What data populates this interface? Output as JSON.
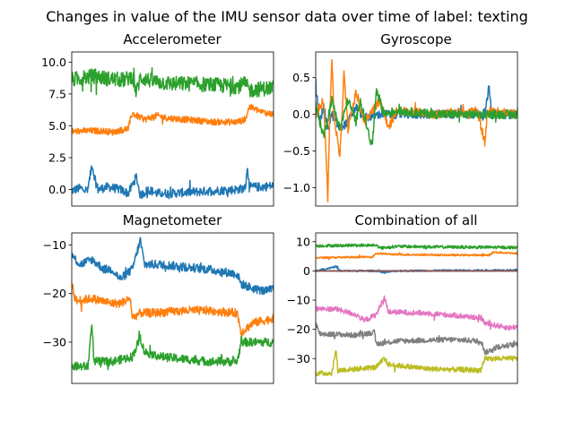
{
  "figure": {
    "title": "Changes in value of the IMU sensor data over time of label: texting"
  },
  "colors": [
    "#1f77b4",
    "#ff7f0e",
    "#2ca02c",
    "#d62728",
    "#9467bd",
    "#8c564b",
    "#e377c2",
    "#7f7f7f",
    "#bcbd22"
  ],
  "chart_data": [
    {
      "type": "line",
      "title": "Accelerometer",
      "xlabel": "",
      "ylabel": "",
      "xlim": [
        0,
        500
      ],
      "ylim": [
        -1.3,
        10.8
      ],
      "grid": false,
      "x_ticks_visible": false,
      "yticks": [
        0.0,
        2.5,
        5.0,
        7.5,
        10.0
      ],
      "ytick_labels": [
        "0.0",
        "2.5",
        "5.0",
        "7.5",
        "10.0"
      ],
      "series": [
        {
          "values": [
            [
              0,
              -0.1
            ],
            [
              20,
              0.1
            ],
            [
              40,
              -0.1
            ],
            [
              50,
              2.0
            ],
            [
              55,
              1.2
            ],
            [
              65,
              0.0
            ],
            [
              90,
              0.2
            ],
            [
              120,
              0.0
            ],
            [
              140,
              -0.3
            ],
            [
              160,
              1.0
            ],
            [
              170,
              -0.5
            ],
            [
              190,
              0.0
            ],
            [
              210,
              -0.3
            ],
            [
              250,
              -0.3
            ],
            [
              300,
              -0.2
            ],
            [
              350,
              -0.1
            ],
            [
              410,
              0.0
            ],
            [
              430,
              0.1
            ],
            [
              435,
              1.8
            ],
            [
              440,
              0.2
            ],
            [
              470,
              0.2
            ],
            [
              500,
              0.3
            ]
          ],
          "noise": 0.35
        },
        {
          "values": [
            [
              0,
              4.5
            ],
            [
              20,
              4.6
            ],
            [
              50,
              4.6
            ],
            [
              80,
              4.6
            ],
            [
              100,
              4.5
            ],
            [
              140,
              4.8
            ],
            [
              150,
              6.0
            ],
            [
              160,
              5.8
            ],
            [
              180,
              5.5
            ],
            [
              210,
              5.8
            ],
            [
              240,
              5.6
            ],
            [
              280,
              5.5
            ],
            [
              320,
              5.4
            ],
            [
              350,
              5.3
            ],
            [
              380,
              5.3
            ],
            [
              410,
              5.3
            ],
            [
              430,
              5.5
            ],
            [
              440,
              6.5
            ],
            [
              470,
              6.1
            ],
            [
              500,
              5.9
            ]
          ],
          "noise": 0.25
        },
        {
          "values": [
            [
              0,
              8.6
            ],
            [
              30,
              8.8
            ],
            [
              60,
              8.9
            ],
            [
              90,
              8.7
            ],
            [
              130,
              8.6
            ],
            [
              150,
              8.9
            ],
            [
              160,
              7.6
            ],
            [
              170,
              8.8
            ],
            [
              200,
              8.5
            ],
            [
              250,
              8.3
            ],
            [
              300,
              8.3
            ],
            [
              350,
              8.2
            ],
            [
              410,
              8.1
            ],
            [
              430,
              8.3
            ],
            [
              440,
              7.8
            ],
            [
              470,
              7.9
            ],
            [
              500,
              8.0
            ]
          ],
          "noise": 0.6
        }
      ]
    },
    {
      "type": "line",
      "title": "Gyroscope",
      "xlabel": "",
      "ylabel": "",
      "xlim": [
        0,
        500
      ],
      "ylim": [
        -1.25,
        0.85
      ],
      "grid": false,
      "x_ticks_visible": false,
      "yticks": [
        -1.0,
        -0.5,
        0.0,
        0.5
      ],
      "ytick_labels": [
        "−1.0",
        "−0.5",
        "0.0",
        "0.5"
      ],
      "series": [
        {
          "values": [
            [
              0,
              0.4
            ],
            [
              10,
              -0.1
            ],
            [
              20,
              0.1
            ],
            [
              30,
              -0.2
            ],
            [
              40,
              0.0
            ],
            [
              60,
              -0.2
            ],
            [
              80,
              -0.1
            ],
            [
              100,
              0.1
            ],
            [
              120,
              -0.05
            ],
            [
              160,
              0.0
            ],
            [
              200,
              0.0
            ],
            [
              300,
              0.0
            ],
            [
              420,
              0.0
            ],
            [
              430,
              0.4
            ],
            [
              435,
              0.0
            ],
            [
              500,
              0.0
            ]
          ],
          "noise": 0.06
        },
        {
          "values": [
            [
              0,
              0.0
            ],
            [
              20,
              0.2
            ],
            [
              30,
              -1.15
            ],
            [
              35,
              0.0
            ],
            [
              40,
              0.78
            ],
            [
              45,
              0.0
            ],
            [
              60,
              -0.6
            ],
            [
              70,
              0.55
            ],
            [
              80,
              -0.2
            ],
            [
              100,
              0.3
            ],
            [
              120,
              -0.1
            ],
            [
              160,
              0.2
            ],
            [
              180,
              -0.2
            ],
            [
              200,
              0.05
            ],
            [
              300,
              0.0
            ],
            [
              400,
              0.05
            ],
            [
              420,
              -0.4
            ],
            [
              425,
              0.05
            ],
            [
              500,
              0.0
            ]
          ],
          "noise": 0.06
        },
        {
          "values": [
            [
              0,
              0.1
            ],
            [
              20,
              -0.3
            ],
            [
              40,
              0.2
            ],
            [
              60,
              -0.2
            ],
            [
              80,
              0.2
            ],
            [
              100,
              -0.1
            ],
            [
              110,
              0.2
            ],
            [
              140,
              -0.45
            ],
            [
              150,
              0.35
            ],
            [
              170,
              0.0
            ],
            [
              200,
              0.05
            ],
            [
              300,
              0.0
            ],
            [
              400,
              0.0
            ],
            [
              500,
              0.0
            ]
          ],
          "noise": 0.06
        }
      ]
    },
    {
      "type": "line",
      "title": "Magnetometer",
      "xlabel": "",
      "ylabel": "",
      "xlim": [
        0,
        500
      ],
      "ylim": [
        -38.5,
        -7.5
      ],
      "grid": false,
      "x_ticks_visible": false,
      "yticks": [
        -30,
        -20,
        -10
      ],
      "ytick_labels": [
        "−30",
        "−20",
        "−10"
      ],
      "series": [
        {
          "values": [
            [
              0,
              -12
            ],
            [
              20,
              -14
            ],
            [
              50,
              -13
            ],
            [
              80,
              -15
            ],
            [
              100,
              -15
            ],
            [
              120,
              -17
            ],
            [
              150,
              -15
            ],
            [
              170,
              -9
            ],
            [
              180,
              -14
            ],
            [
              220,
              -14
            ],
            [
              280,
              -14.5
            ],
            [
              340,
              -15
            ],
            [
              410,
              -16
            ],
            [
              420,
              -18
            ],
            [
              450,
              -19
            ],
            [
              480,
              -19.5
            ],
            [
              500,
              -19
            ]
          ],
          "noise": 0.9
        },
        {
          "values": [
            [
              0,
              -18
            ],
            [
              10,
              -21.5
            ],
            [
              50,
              -21
            ],
            [
              100,
              -22
            ],
            [
              120,
              -22
            ],
            [
              145,
              -21
            ],
            [
              150,
              -25
            ],
            [
              170,
              -24
            ],
            [
              200,
              -24
            ],
            [
              280,
              -23.5
            ],
            [
              340,
              -23.5
            ],
            [
              410,
              -24
            ],
            [
              420,
              -28
            ],
            [
              450,
              -26
            ],
            [
              480,
              -25.5
            ],
            [
              500,
              -25
            ]
          ],
          "noise": 0.9
        },
        {
          "values": [
            [
              0,
              -35
            ],
            [
              40,
              -35
            ],
            [
              50,
              -26
            ],
            [
              55,
              -34
            ],
            [
              100,
              -34
            ],
            [
              150,
              -33
            ],
            [
              170,
              -29
            ],
            [
              180,
              -32
            ],
            [
              220,
              -33
            ],
            [
              280,
              -33.5
            ],
            [
              340,
              -34
            ],
            [
              410,
              -34
            ],
            [
              420,
              -30
            ],
            [
              450,
              -30
            ],
            [
              480,
              -30
            ],
            [
              500,
              -30
            ]
          ],
          "noise": 0.9
        }
      ]
    },
    {
      "type": "line",
      "title": "Combination of all",
      "xlabel": "",
      "ylabel": "",
      "xlim": [
        0,
        500
      ],
      "ylim": [
        -38.5,
        13
      ],
      "grid": false,
      "x_ticks_visible": false,
      "yticks": [
        -30,
        -20,
        -10,
        0,
        10
      ],
      "ytick_labels": [
        "−30",
        "−20",
        "−10",
        "0",
        "10"
      ],
      "series": [
        {
          "values": [
            [
              0,
              0
            ],
            [
              50,
              1.5
            ],
            [
              60,
              0
            ],
            [
              150,
              0
            ],
            [
              170,
              -0.5
            ],
            [
              200,
              0
            ],
            [
              500,
              0.3
            ]
          ],
          "noise": 0.3
        },
        {
          "values": [
            [
              0,
              4.5
            ],
            [
              140,
              4.8
            ],
            [
              150,
              6
            ],
            [
              200,
              5.6
            ],
            [
              350,
              5.4
            ],
            [
              430,
              5.4
            ],
            [
              440,
              6.4
            ],
            [
              500,
              6
            ]
          ],
          "noise": 0.3
        },
        {
          "values": [
            [
              0,
              8.6
            ],
            [
              150,
              8.8
            ],
            [
              160,
              7.8
            ],
            [
              200,
              8.4
            ],
            [
              300,
              8.2
            ],
            [
              500,
              8
            ]
          ],
          "noise": 0.5
        },
        {
          "values": [
            [
              0,
              0
            ],
            [
              500,
              0
            ]
          ],
          "noise": 0.08
        },
        {
          "values": [
            [
              0,
              0
            ],
            [
              500,
              0
            ]
          ],
          "noise": 0.08
        },
        {
          "values": [
            [
              0,
              0
            ],
            [
              500,
              0
            ]
          ],
          "noise": 0.08
        },
        {
          "values": [
            [
              0,
              -13
            ],
            [
              50,
              -13
            ],
            [
              100,
              -15
            ],
            [
              120,
              -17
            ],
            [
              150,
              -15
            ],
            [
              170,
              -9
            ],
            [
              180,
              -14
            ],
            [
              280,
              -14.5
            ],
            [
              410,
              -16
            ],
            [
              420,
              -18
            ],
            [
              480,
              -19.5
            ],
            [
              500,
              -19
            ]
          ],
          "noise": 0.9
        },
        {
          "values": [
            [
              0,
              -18
            ],
            [
              10,
              -21.5
            ],
            [
              100,
              -22
            ],
            [
              145,
              -21
            ],
            [
              150,
              -25
            ],
            [
              200,
              -24
            ],
            [
              340,
              -23.5
            ],
            [
              410,
              -24
            ],
            [
              420,
              -28
            ],
            [
              450,
              -26
            ],
            [
              500,
              -25
            ]
          ],
          "noise": 0.9
        },
        {
          "values": [
            [
              0,
              -35
            ],
            [
              40,
              -35
            ],
            [
              50,
              -27
            ],
            [
              55,
              -34
            ],
            [
              150,
              -33
            ],
            [
              170,
              -30
            ],
            [
              180,
              -32
            ],
            [
              280,
              -33.5
            ],
            [
              410,
              -34
            ],
            [
              420,
              -30
            ],
            [
              500,
              -30
            ]
          ],
          "noise": 0.9
        }
      ]
    }
  ]
}
